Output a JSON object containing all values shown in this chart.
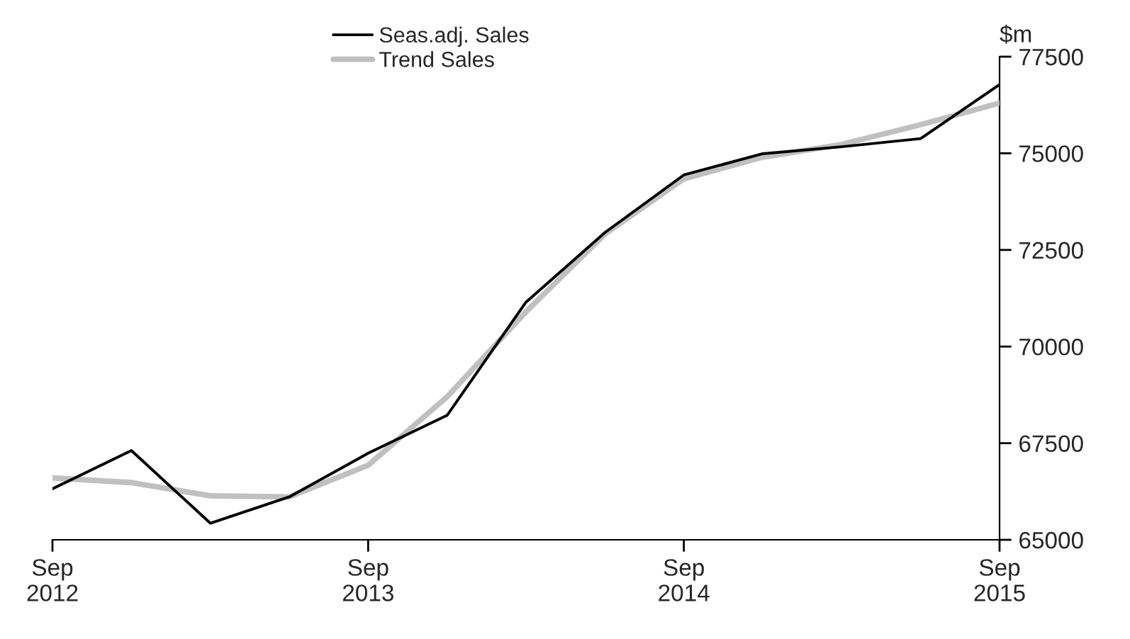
{
  "chart_data": {
    "type": "line",
    "ylabel": "$m",
    "categories": [
      "Sep\n2012",
      null,
      null,
      null,
      "Sep\n2013",
      null,
      null,
      null,
      "Sep\n2014",
      null,
      null,
      null,
      "Sep\n2015"
    ],
    "series": [
      {
        "name": "Seas.adj. Sales",
        "color": "#000000",
        "values": [
          66320,
          67310,
          65430,
          66110,
          67240,
          68220,
          71150,
          72950,
          74440,
          74990,
          75170,
          75380,
          76780
        ]
      },
      {
        "name": "Trend Sales",
        "color": "#c0c0c0",
        "values": [
          66600,
          66480,
          66140,
          66110,
          66930,
          68700,
          70900,
          72910,
          74340,
          74900,
          75230,
          75740,
          76300
        ]
      }
    ],
    "ylim": [
      65000,
      77500
    ],
    "yticks": [
      65000,
      67500,
      70000,
      72500,
      75000,
      77500
    ],
    "grid": false,
    "legend": "top"
  }
}
